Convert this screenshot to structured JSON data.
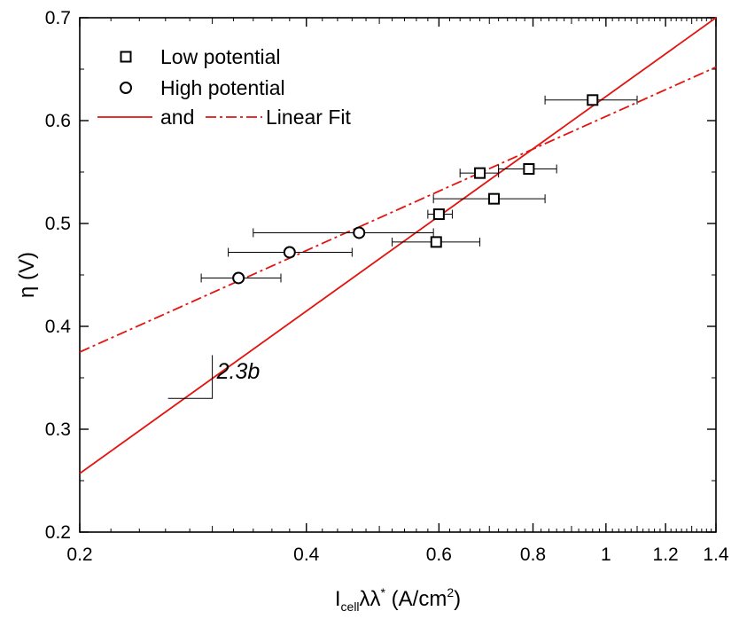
{
  "chart_data": {
    "type": "scatter",
    "xscale": "log",
    "xlim": [
      0.2,
      1.4
    ],
    "ylim": [
      0.2,
      0.7
    ],
    "xticks": [
      0.2,
      0.4,
      0.6,
      0.8,
      1,
      1.2,
      1.4
    ],
    "xtick_labels": [
      "0.2",
      "0.4",
      "0.6",
      "0.8",
      "1",
      "1.2",
      "1.4"
    ],
    "yticks": [
      0.2,
      0.3,
      0.4,
      0.5,
      0.6,
      0.7
    ],
    "ytick_labels": [
      "0.2",
      "0.3",
      "0.4",
      "0.5",
      "0.6",
      "0.7"
    ],
    "xlabel": {
      "main": "I",
      "sub": "cell",
      "mid": "λλ",
      "sup": "*",
      "rest": " (A/cm",
      "sup2": "2",
      "end": ")"
    },
    "ylabel": "η (V)",
    "legend_position": "top-left",
    "series": [
      {
        "name": "Low potential",
        "marker": "square",
        "points": [
          {
            "x": 0.96,
            "y": 0.62,
            "xerr": [
              0.83,
              1.1
            ]
          },
          {
            "x": 0.79,
            "y": 0.553,
            "xerr": [
              0.72,
              0.86
            ]
          },
          {
            "x": 0.68,
            "y": 0.549,
            "xerr": [
              0.64,
              0.72
            ]
          },
          {
            "x": 0.71,
            "y": 0.524,
            "xerr": [
              0.59,
              0.83
            ]
          },
          {
            "x": 0.6,
            "y": 0.509,
            "xerr": [
              0.58,
              0.625
            ]
          },
          {
            "x": 0.595,
            "y": 0.482,
            "xerr": [
              0.52,
              0.68
            ]
          }
        ]
      },
      {
        "name": "High potential",
        "marker": "circle",
        "points": [
          {
            "x": 0.47,
            "y": 0.491,
            "xerr": [
              0.34,
              0.59
            ]
          },
          {
            "x": 0.38,
            "y": 0.472,
            "xerr": [
              0.315,
              0.46
            ]
          },
          {
            "x": 0.325,
            "y": 0.447,
            "xerr": [
              0.29,
              0.37
            ]
          }
        ]
      }
    ],
    "fits": [
      {
        "style": "solid",
        "x": [
          0.2,
          1.4
        ],
        "y": [
          0.257,
          0.7
        ]
      },
      {
        "style": "dashdot",
        "x": [
          0.2,
          1.4
        ],
        "y": [
          0.375,
          0.652
        ]
      }
    ],
    "legend": {
      "items": [
        "Low potential",
        "High potential"
      ],
      "fit_row": {
        "and": "and",
        "label": "Linear Fit"
      }
    },
    "annotation": {
      "text": "2.3b",
      "triangle_x": [
        0.262,
        0.3
      ],
      "triangle_y": [
        0.33,
        0.372
      ]
    },
    "colors": {
      "fit": "#e3140f",
      "marker": "#000000"
    }
  }
}
